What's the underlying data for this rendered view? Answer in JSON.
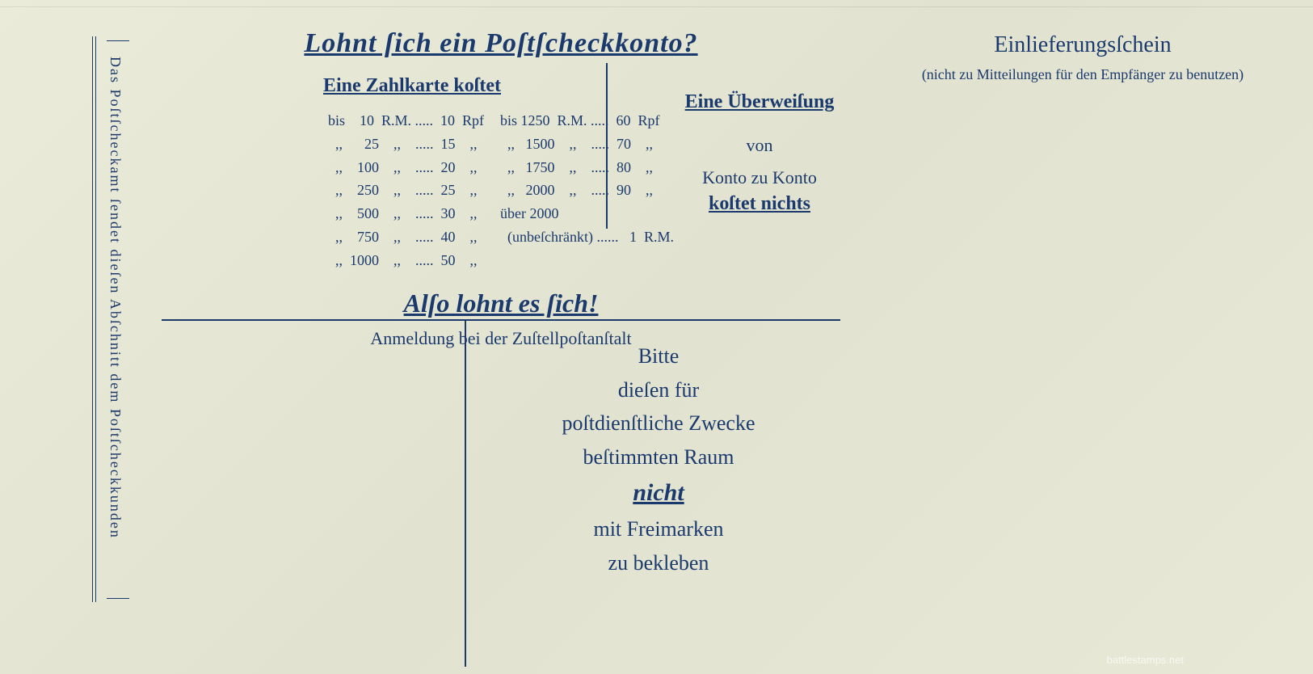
{
  "ink_color": "#1a3a6e",
  "paper_color": "#e8e8d8",
  "vertical_text": "Das Poſtſcheckamt ſendet dieſen Abſchnitt dem Poſtſcheckkunden",
  "main": {
    "title": "Lohnt ſich ein Poſtſcheckkonto?",
    "subtitle": "Eine Zahlkarte koſtet",
    "price_table": {
      "left_col": "bis    10  R.M. .....  10  Rpf\n  ,,      25    ,,    .....  15    ,,\n  ,,    100    ,,    .....  20    ,,\n  ,,    250    ,,    .....  25    ,,\n  ,,    500    ,,    .....  30    ,,\n  ,,    750    ,,    .....  40    ,,\n  ,,  1000    ,,    .....  50    ,,",
      "right_col": "bis 1250  R.M. .....  60  Rpf\n  ,,   1500    ,,    .....  70    ,,\n  ,,   1750    ,,    .....  80    ,,\n  ,,   2000    ,,    .....  90    ,,\nüber 2000\n  (unbeſchränkt) ......   1  R.M."
    },
    "transfer": {
      "title": "Eine Überweiſung",
      "line1": "von",
      "line2": "Konto zu Konto",
      "emphasis": "koſtet nichts"
    },
    "also": {
      "title": "Alſo lohnt es ſich!",
      "subtitle": "Anmeldung bei der Zuſtellpoſtanſtalt"
    }
  },
  "bitte": {
    "line1": "Bitte",
    "line2": "dieſen für",
    "line3": "poſtdienſtliche Zwecke",
    "line4": "beſtimmten Raum",
    "emphasis": "nicht",
    "line5": "mit Freimarken",
    "line6": "zu bekleben"
  },
  "right": {
    "title": "Einlieferungsſchein",
    "subtitle": "(nicht zu Mitteilungen für den Empfänger zu benutzen)"
  },
  "watermark": "battlestamps.net"
}
